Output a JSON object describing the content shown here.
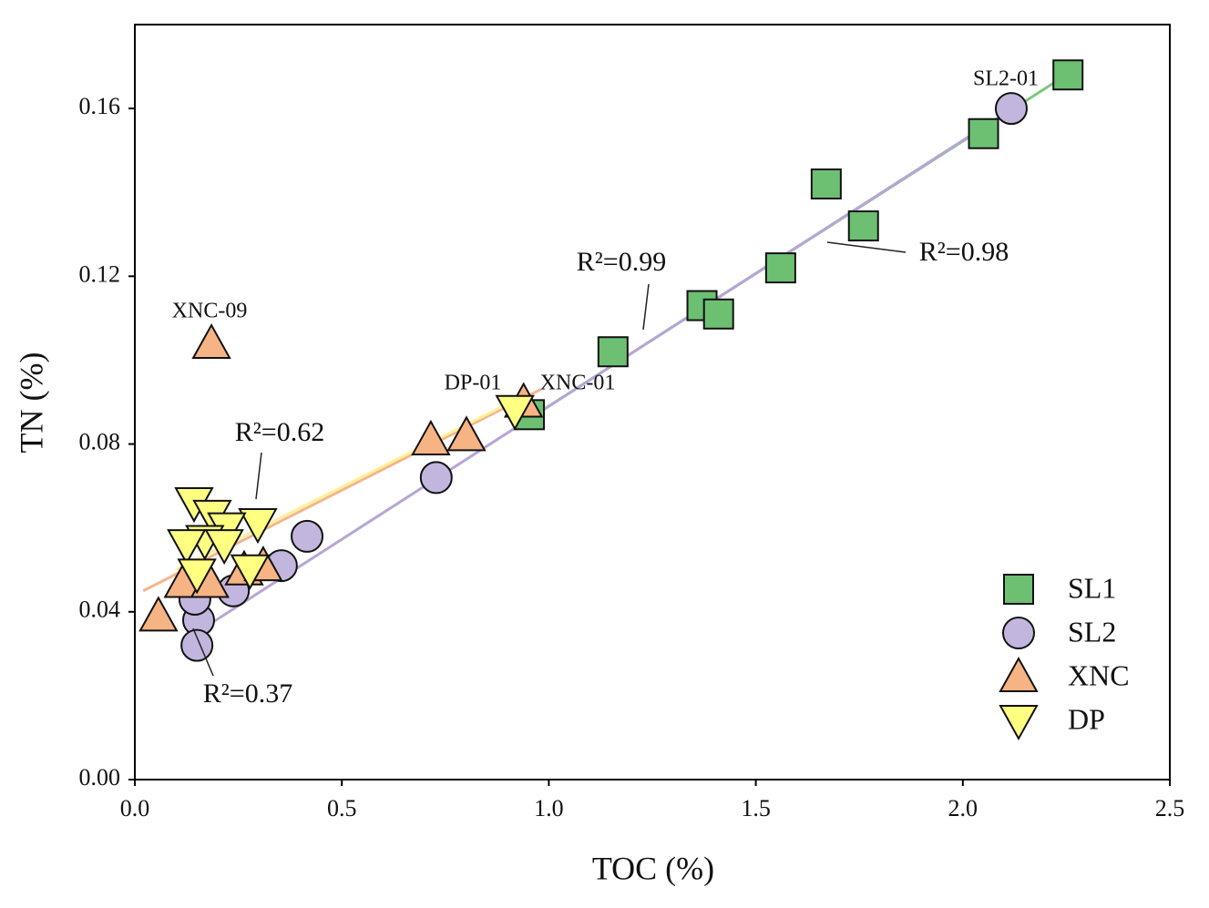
{
  "chart_data": {
    "type": "scatter",
    "x_label": "TOC (%)",
    "y_label": "TN (%)",
    "xlim": [
      0,
      2.5
    ],
    "ylim": [
      0,
      0.18
    ],
    "xticks": [
      {
        "value": 0,
        "label": "0.0"
      },
      {
        "value": 0.5,
        "label": "0.5"
      },
      {
        "value": 1,
        "label": "1.0"
      },
      {
        "value": 1.5,
        "label": "1.5"
      },
      {
        "value": 2,
        "label": "2.0"
      },
      {
        "value": 2.5,
        "label": "2.5"
      }
    ],
    "yticks": [
      {
        "value": 0,
        "label": "0.00"
      },
      {
        "value": 0.04,
        "label": "0.04"
      },
      {
        "value": 0.08,
        "label": "0.08"
      },
      {
        "value": 0.12,
        "label": "0.12"
      },
      {
        "value": 0.16,
        "label": "0.16"
      }
    ],
    "legend": "lower right",
    "series": [
      {
        "name": "SL1",
        "marker": "square",
        "color": "#6dc072",
        "fit_color": "#7cc77f",
        "x": [
          2.254,
          2.05,
          1.67,
          1.76,
          1.56,
          1.37,
          1.41,
          1.155,
          0.953
        ],
        "values": [
          0.168,
          0.154,
          0.142,
          0.132,
          0.122,
          0.113,
          0.111,
          0.102,
          0.087
        ],
        "fit_x": [
          0.92,
          2.25
        ],
        "fit_y": [
          0.084,
          0.168
        ]
      },
      {
        "name": "SL2",
        "marker": "circle",
        "color": "#c2b6de",
        "fit_color": "#b7a5d7",
        "x": [
          2.117,
          0.728,
          0.416,
          0.354,
          0.238,
          0.154,
          0.15,
          0.145
        ],
        "values": [
          0.16,
          0.072,
          0.058,
          0.051,
          0.045,
          0.038,
          0.032,
          0.043
        ],
        "fit_x": [
          0.18,
          2.12
        ],
        "fit_y": [
          0.037,
          0.16
        ]
      },
      {
        "name": "XNC",
        "marker": "triangle-up",
        "color": "#f6b384",
        "fit_color": "#f7b48a",
        "x": [
          0.185,
          0.715,
          0.801,
          0.939,
          0.057,
          0.117,
          0.181,
          0.264,
          0.31
        ],
        "values": [
          0.104,
          0.081,
          0.082,
          0.09,
          0.039,
          0.047,
          0.047,
          0.05,
          0.051
        ],
        "fit_x": [
          0.02,
          0.98
        ],
        "fit_y": [
          0.045,
          0.093
        ]
      },
      {
        "name": "DP",
        "marker": "triangle-down",
        "color": "#ffff82",
        "fit_color": "#fff19a",
        "x": [
          0.143,
          0.187,
          0.297,
          0.222,
          0.169,
          0.125,
          0.216,
          0.278,
          0.15,
          0.918
        ],
        "values": [
          0.066,
          0.063,
          0.061,
          0.06,
          0.057,
          0.056,
          0.056,
          0.05,
          0.049,
          0.088
        ],
        "fit_x": [
          0.1,
          0.95
        ],
        "fit_y": [
          0.05,
          0.092
        ]
      }
    ],
    "annotations": [
      "SL2-01",
      "XNC-09",
      "DP-01",
      "XNC-01",
      "R²=0.99",
      "R²=0.98",
      "R²=0.62",
      "R²=0.37"
    ]
  }
}
